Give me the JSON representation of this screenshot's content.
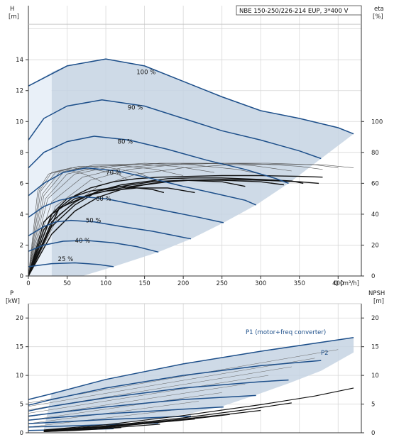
{
  "chart_data": [
    {
      "type": "line",
      "title": "NBE 150-250/226-214 EUP, 3*400 V",
      "xlabel": "Q [m³/h]",
      "ylabel_left_name": "H",
      "ylabel_left_unit": "[m]",
      "ylabel_right_name": "eta",
      "ylabel_right_unit": "[%]",
      "xlim": [
        0,
        430
      ],
      "ylim": [
        0,
        17.5
      ],
      "eta_lim": [
        0,
        100
      ],
      "xticks": [
        "0",
        "50",
        "100",
        "150",
        "200",
        "250",
        "300",
        "350",
        "400"
      ],
      "yticks_left": [
        "0",
        "2",
        "4",
        "6",
        "8",
        "10",
        "12",
        "14"
      ],
      "yticks_right": [
        "0",
        "20",
        "40",
        "60",
        "80",
        "100"
      ],
      "grid": true,
      "operating_area_color": "#c5d3e3",
      "curve_color": "#1d4f8a",
      "series": [
        {
          "name": "100 %",
          "x": [
            0,
            50,
            100,
            150,
            200,
            250,
            300,
            350,
            400,
            420
          ],
          "values": [
            12.3,
            13.6,
            14.05,
            13.6,
            12.6,
            11.6,
            10.7,
            10.2,
            9.6,
            9.2
          ]
        },
        {
          "name": "90 %",
          "x": [
            0,
            20,
            50,
            95,
            150,
            200,
            250,
            300,
            350,
            378
          ],
          "values": [
            8.8,
            10.2,
            11.0,
            11.4,
            11.0,
            10.2,
            9.4,
            8.8,
            8.1,
            7.6
          ]
        },
        {
          "name": "80 %",
          "x": [
            0,
            20,
            50,
            85,
            130,
            180,
            230,
            280,
            320,
            336
          ],
          "values": [
            7.0,
            8.0,
            8.7,
            9.05,
            8.8,
            8.2,
            7.5,
            6.9,
            6.3,
            6.0
          ]
        },
        {
          "name": "70 %",
          "x": [
            0,
            20,
            45,
            75,
            115,
            160,
            200,
            245,
            280,
            294
          ],
          "values": [
            5.2,
            6.0,
            6.7,
            7.0,
            6.8,
            6.3,
            5.8,
            5.3,
            4.9,
            4.6
          ]
        },
        {
          "name": "60 %",
          "x": [
            0,
            20,
            40,
            65,
            100,
            140,
            180,
            220,
            252
          ],
          "values": [
            3.8,
            4.5,
            4.9,
            5.15,
            5.0,
            4.6,
            4.2,
            3.8,
            3.45
          ]
        },
        {
          "name": "50 %",
          "x": [
            0,
            20,
            35,
            55,
            85,
            120,
            160,
            190,
            210
          ],
          "values": [
            2.6,
            3.2,
            3.5,
            3.6,
            3.5,
            3.2,
            2.9,
            2.6,
            2.4
          ]
        },
        {
          "name": "40 %",
          "x": [
            0,
            20,
            45,
            75,
            110,
            140,
            168
          ],
          "values": [
            1.6,
            2.0,
            2.25,
            2.3,
            2.15,
            1.9,
            1.55
          ]
        },
        {
          "name": "25 %",
          "x": [
            0,
            30,
            60,
            90,
            110
          ],
          "values": [
            0.6,
            0.8,
            0.85,
            0.75,
            0.6
          ]
        }
      ],
      "labels": [
        {
          "text": "100 %",
          "x": 152,
          "y": 13.2
        },
        {
          "text": "90 %",
          "x": 138,
          "y": 10.9
        },
        {
          "text": "80 %",
          "x": 125,
          "y": 8.7
        },
        {
          "text": "70 %",
          "x": 110,
          "y": 6.7
        },
        {
          "text": "60 %",
          "x": 97,
          "y": 5.0
        },
        {
          "text": "50 %",
          "x": 84,
          "y": 3.6
        },
        {
          "text": "40 %",
          "x": 70,
          "y": 2.3
        },
        {
          "text": "25 %",
          "x": 48,
          "y": 1.1
        }
      ],
      "eta_curves": [
        {
          "x": [
            0,
            30,
            60,
            90,
            120,
            150,
            180,
            210,
            250,
            300,
            350,
            375
          ],
          "values": [
            0,
            27,
            42,
            51,
            56,
            59,
            61,
            62,
            62.5,
            62,
            61,
            60
          ]
        },
        {
          "x": [
            0,
            20,
            40,
            60,
            80,
            110,
            140,
            170,
            210,
            250,
            300,
            350,
            380
          ],
          "values": [
            0,
            30,
            44,
            52,
            57,
            61,
            63,
            64,
            64.5,
            65,
            65,
            64.5,
            64
          ]
        },
        {
          "x": [
            0,
            30,
            60,
            90,
            120,
            150,
            180,
            210,
            250,
            300,
            340,
            355
          ],
          "values": [
            0,
            32,
            46,
            55,
            59,
            61,
            63,
            63.5,
            63.5,
            62.5,
            61.5,
            60
          ]
        },
        {
          "x": [
            0,
            30,
            60,
            90,
            120,
            160,
            200,
            250,
            300,
            330
          ],
          "values": [
            0,
            35,
            48,
            55,
            58,
            61,
            62,
            62,
            61,
            59
          ]
        },
        {
          "x": [
            0,
            40,
            80,
            120,
            160,
            200,
            250,
            280
          ],
          "values": [
            0,
            44,
            53,
            57,
            60,
            62,
            61,
            58
          ]
        },
        {
          "x": [
            0,
            30,
            60,
            100,
            140,
            180,
            215
          ],
          "values": [
            0,
            40,
            50,
            55,
            57,
            57,
            54
          ]
        },
        {
          "x": [
            0,
            20,
            50,
            80,
            120,
            160,
            175
          ],
          "values": [
            0,
            35,
            50,
            55,
            58,
            56,
            54
          ]
        }
      ],
      "eta_thin_curves": [
        {
          "x": [
            0,
            40,
            90,
            140,
            200,
            260,
            320,
            380,
            420
          ],
          "values": [
            0,
            40,
            58,
            66,
            70,
            72,
            72.5,
            72,
            70
          ]
        },
        {
          "x": [
            0,
            35,
            80,
            130,
            190,
            250,
            310,
            370,
            400
          ],
          "values": [
            0,
            45,
            62,
            69,
            72,
            73,
            73,
            72,
            70
          ]
        },
        {
          "x": [
            0,
            30,
            70,
            120,
            180,
            240,
            300,
            350,
            380
          ],
          "values": [
            0,
            48,
            64,
            70,
            72.5,
            73,
            72.5,
            71,
            69
          ]
        },
        {
          "x": [
            0,
            25,
            60,
            110,
            170,
            230,
            290,
            340
          ],
          "values": [
            0,
            50,
            66,
            71,
            73,
            73,
            71.5,
            68
          ]
        },
        {
          "x": [
            0,
            22,
            50,
            95,
            150,
            210,
            270,
            300
          ],
          "values": [
            0,
            50,
            66,
            71,
            73,
            72,
            69,
            66
          ]
        },
        {
          "x": [
            0,
            20,
            45,
            85,
            135,
            190,
            240
          ],
          "values": [
            0,
            52,
            67,
            72,
            72.5,
            71,
            67
          ]
        },
        {
          "x": [
            0,
            18,
            40,
            75,
            120,
            165,
            200
          ],
          "values": [
            0,
            53,
            67,
            71,
            71.5,
            69,
            65
          ]
        },
        {
          "x": [
            0,
            16,
            35,
            65,
            100,
            140,
            160
          ],
          "values": [
            0,
            55,
            67,
            71,
            70.5,
            67,
            63
          ]
        },
        {
          "x": [
            0,
            14,
            30,
            55,
            85,
            115,
            130
          ],
          "values": [
            0,
            55,
            67,
            70,
            69,
            66,
            62
          ]
        },
        {
          "x": [
            0,
            12,
            26,
            48,
            72,
            95
          ],
          "values": [
            0,
            55,
            66,
            69,
            66,
            61
          ]
        }
      ]
    },
    {
      "type": "line",
      "ylabel_left_name": "P",
      "ylabel_left_unit": "[kW]",
      "ylabel_right_name": "NPSH",
      "ylabel_right_unit": "[m]",
      "xlim": [
        0,
        430
      ],
      "ylim": [
        0,
        22.5
      ],
      "yticks_left": [
        "0",
        "5",
        "10",
        "15",
        "20"
      ],
      "yticks_right": [
        "0",
        "5",
        "10",
        "15",
        "20"
      ],
      "grid": true,
      "annotations": [
        "P1 (motor+freq converter)",
        "P2"
      ],
      "envelope": {
        "top": {
          "x": [
            30,
            100,
            200,
            300,
            400,
            420
          ],
          "values": [
            6.8,
            9.3,
            12.0,
            14.2,
            16.2,
            16.6
          ]
        },
        "bottom": {
          "x": [
            20,
            110,
            170,
            210,
            250,
            294,
            336,
            378,
            420
          ],
          "values": [
            0.6,
            1.6,
            2.6,
            3.4,
            4.6,
            6.6,
            8.6,
            10.8,
            14.0
          ]
        }
      },
      "p1_curves": [
        {
          "x": [
            0,
            30,
            100,
            200,
            300,
            400,
            420
          ],
          "values": [
            5.8,
            6.8,
            9.3,
            12.0,
            14.2,
            16.2,
            16.6
          ]
        },
        {
          "x": [
            0,
            30,
            100,
            200,
            300,
            378
          ],
          "values": [
            4.8,
            5.8,
            7.8,
            10.0,
            11.7,
            12.6
          ]
        },
        {
          "x": [
            0,
            30,
            100,
            200,
            300,
            336
          ],
          "values": [
            3.8,
            4.6,
            6.1,
            7.8,
            8.9,
            9.2
          ]
        },
        {
          "x": [
            0,
            30,
            100,
            200,
            294
          ],
          "values": [
            2.9,
            3.4,
            4.5,
            5.8,
            6.5
          ]
        },
        {
          "x": [
            0,
            30,
            100,
            200,
            252
          ],
          "values": [
            2.2,
            2.6,
            3.3,
            4.1,
            4.5
          ]
        },
        {
          "x": [
            0,
            30,
            100,
            170,
            210
          ],
          "values": [
            1.6,
            1.8,
            2.3,
            2.7,
            2.9
          ]
        },
        {
          "x": [
            0,
            30,
            100,
            168
          ],
          "values": [
            1.0,
            1.1,
            1.4,
            1.7
          ]
        },
        {
          "x": [
            0,
            30,
            80,
            110
          ],
          "values": [
            0.4,
            0.5,
            0.6,
            0.7
          ]
        }
      ],
      "npsh_curves": [
        {
          "x": [
            20,
            100,
            200,
            300,
            370,
            420
          ],
          "values": [
            0.5,
            1.4,
            3.0,
            4.9,
            6.4,
            7.8
          ]
        },
        {
          "x": [
            20,
            100,
            200,
            280,
            340
          ],
          "values": [
            0.4,
            1.2,
            2.6,
            4.0,
            5.2
          ]
        },
        {
          "x": [
            20,
            100,
            200,
            250,
            300
          ],
          "values": [
            0.4,
            1.1,
            2.4,
            3.1,
            3.9
          ]
        },
        {
          "x": [
            20,
            100,
            180,
            230,
            260
          ],
          "values": [
            0.3,
            1.0,
            2.0,
            2.7,
            3.2
          ]
        },
        {
          "x": [
            20,
            100,
            160,
            200,
            215
          ],
          "values": [
            0.3,
            0.9,
            1.7,
            2.2,
            2.4
          ]
        },
        {
          "x": [
            20,
            80,
            130,
            170
          ],
          "values": [
            0.2,
            0.6,
            1.1,
            1.5
          ]
        },
        {
          "x": [
            20,
            60,
            100,
            120
          ],
          "values": [
            0.2,
            0.4,
            0.7,
            0.9
          ]
        }
      ]
    }
  ]
}
